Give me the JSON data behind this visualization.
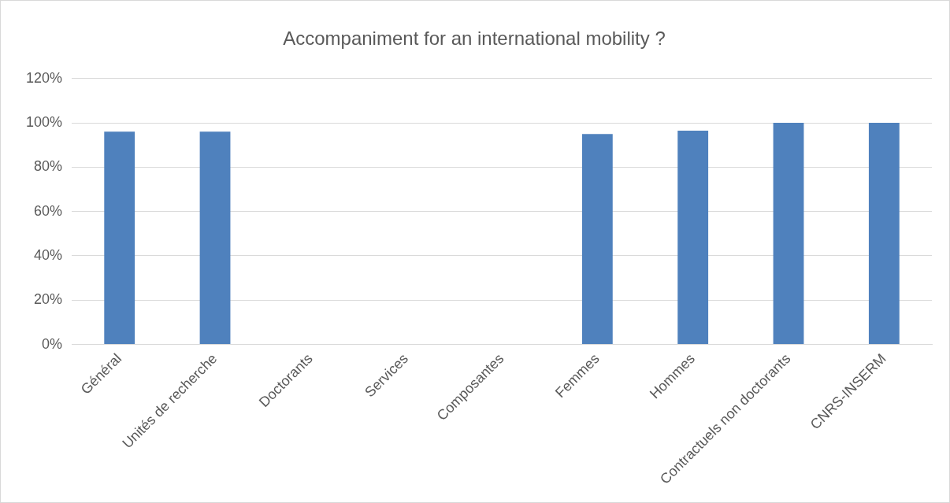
{
  "chart_data": {
    "type": "bar",
    "title": "Accompaniment for an international mobility ?",
    "categories": [
      "Général",
      "Unités de recherche",
      "Doctorants",
      "Services",
      "Composantes",
      "Femmes",
      "Hommes",
      "Contractuels non doctorants",
      "CNRS-INSERM"
    ],
    "values": [
      96,
      96,
      null,
      null,
      null,
      95,
      96.5,
      100,
      100
    ],
    "color": "#4f81bd",
    "ylim": [
      0,
      120
    ],
    "yticks": [
      {
        "value": 0,
        "label": "0%"
      },
      {
        "value": 20,
        "label": "20%"
      },
      {
        "value": 40,
        "label": "40%"
      },
      {
        "value": 60,
        "label": "60%"
      },
      {
        "value": 80,
        "label": "80%"
      },
      {
        "value": 100,
        "label": "100%"
      },
      {
        "value": 120,
        "label": "120%"
      }
    ],
    "grid": "y",
    "legend": false
  }
}
